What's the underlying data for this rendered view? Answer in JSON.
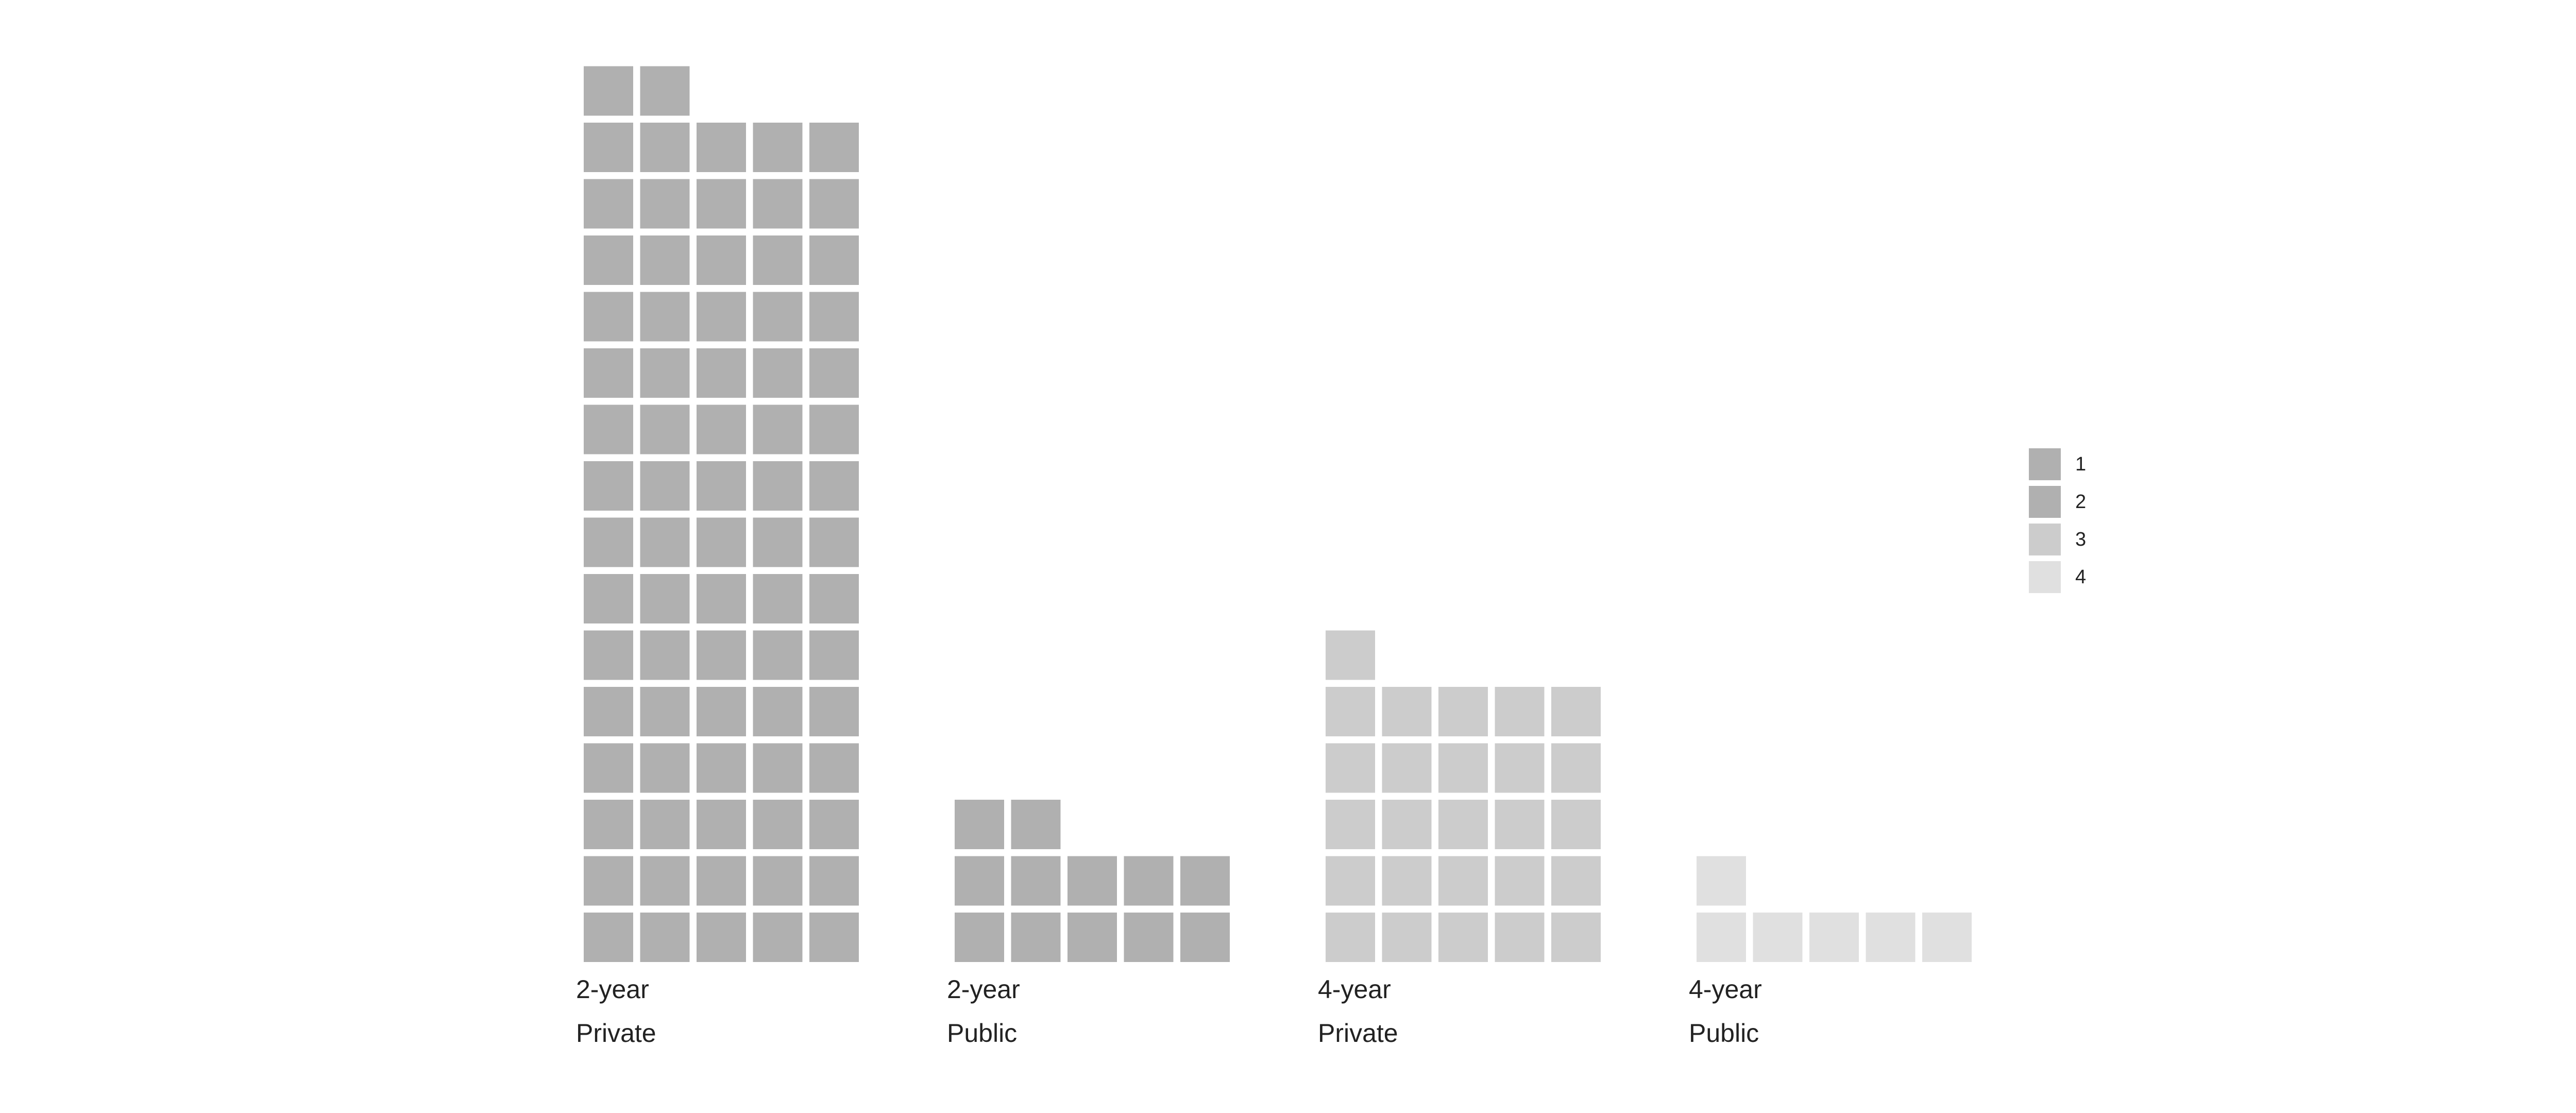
{
  "chart_data": {
    "type": "waffle",
    "title": "",
    "xlabel": "",
    "ylabel": "",
    "grid": false,
    "legend_position": "right",
    "columns_per_stack": 5,
    "groups": [
      {
        "label_line1": "2-year",
        "label_line2": "Private",
        "count": 77,
        "series_index": 1
      },
      {
        "label_line1": "2-year",
        "label_line2": "Public",
        "count": 12,
        "series_index": 2
      },
      {
        "label_line1": "4-year",
        "label_line2": "Private",
        "count": 26,
        "series_index": 3
      },
      {
        "label_line1": "4-year",
        "label_line2": "Public",
        "count": 6,
        "series_index": 4
      }
    ],
    "legend": [
      {
        "name": "1",
        "color": "#b0b0b0"
      },
      {
        "name": "2",
        "color": "#b0b0b0"
      },
      {
        "name": "3",
        "color": "#cccccc"
      },
      {
        "name": "4",
        "color": "#e0e0e0"
      }
    ]
  }
}
